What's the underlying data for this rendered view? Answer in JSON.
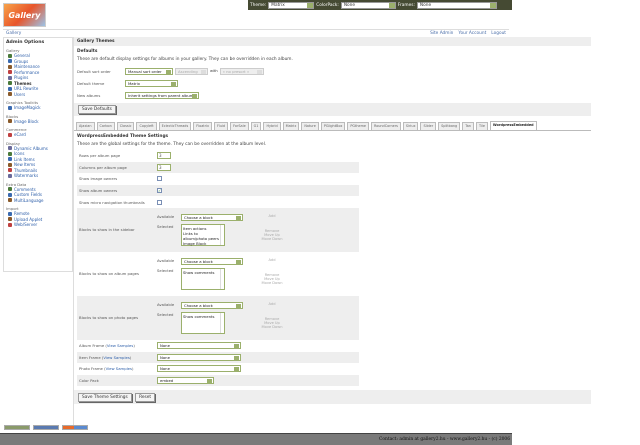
{
  "topbar": {
    "theme_label": "Theme:",
    "theme_value": "Matrix",
    "colorpack_label": "ColorPack:",
    "colorpack_value": "None",
    "frames_label": "Frames:",
    "frames_value": "None"
  },
  "logo_text": "Gallery",
  "nav": {
    "breadcrumb": "Gallery",
    "links": [
      "Site Admin",
      "Your Account",
      "Logout"
    ]
  },
  "sidebar": {
    "title": "Admin Options",
    "groups": [
      {
        "label": "Gallery",
        "items": [
          "General",
          "Groups",
          "Maintenance",
          "Performance",
          "Plugins",
          "Themes",
          "URL Rewrite",
          "Users"
        ]
      },
      {
        "label": "Graphics Toolkits",
        "items": [
          "ImageMagick"
        ]
      },
      {
        "label": "Blocks",
        "items": [
          "Image Block"
        ]
      },
      {
        "label": "Commerce",
        "items": [
          "eCard"
        ]
      },
      {
        "label": "Display",
        "items": [
          "Dynamic Albums",
          "Icons",
          "Link Items",
          "New Items",
          "Thumbnails",
          "Watermarks"
        ]
      },
      {
        "label": "Extra Data",
        "items": [
          "Comments",
          "Custom Fields",
          "MultiLanguage"
        ]
      },
      {
        "label": "Import",
        "items": [
          "Remote",
          "Upload Applet",
          "Web/Server"
        ]
      }
    ],
    "current": "Themes"
  },
  "main": {
    "title": "Gallery Themes",
    "defaults": {
      "heading": "Defaults",
      "description": "These are default display settings for albums in your gallery. They can be overridden in each album.",
      "sort_label": "Default sort order",
      "sort_value": "Manual sort order",
      "direction_value": "Ascending",
      "with_label": "with",
      "presort_value": "« no presort »",
      "theme_label": "Default theme",
      "theme_value": "Matrix",
      "new_albums_label": "New albums",
      "new_albums_value": "Inherit settings from parent album",
      "save_button": "Save Defaults"
    },
    "tabs": [
      "Ajaxian",
      "Carbon",
      "Classic",
      "Copyleft",
      "EclecticThreads",
      "Floatrix",
      "Fluid",
      "ForSale",
      "G1",
      "Hybrid",
      "Matrix",
      "Nature",
      "PGlightBox",
      "PGtheme",
      "RoundCorners",
      "Siriux",
      "Slider",
      "Splitbang",
      "Tan",
      "Tile",
      "WordpressEmbedded"
    ],
    "active_tab": "WordpressEmbedded",
    "theme_settings": {
      "heading": "WordpressEmbedded Theme Settings",
      "description": "These are the global settings for the theme. They can be overridden at the album level.",
      "rows_label": "Rows per album page",
      "rows_value": "3",
      "cols_label": "Columns per album page",
      "cols_value": "3",
      "image_owners_label": "Show image owners",
      "image_owners": false,
      "album_owners_label": "Show album owners",
      "album_owners": true,
      "micro_nav_label": "Show micro navigation thumbnails",
      "micro_nav": false,
      "available_label": "Available",
      "selected_label": "Selected",
      "choose_block": "Choose a block",
      "add": "Add",
      "remove": "Remove",
      "move_up": "Move Up",
      "move_down": "Move Down",
      "sidebar_blocks_label": "Blocks to show in the sidebar",
      "sidebar_blocks": [
        "Item actions",
        "Links to album/photo peers",
        "Image Block"
      ],
      "album_blocks_label": "Blocks to show on album pages",
      "album_blocks": [
        "Show comments"
      ],
      "photo_blocks_label": "Blocks to show on photo pages",
      "photo_blocks": [
        "Show comments"
      ],
      "album_frame_label": "Album Frame (",
      "item_frame_label": "Item Frame (",
      "photo_frame_label": "Photo Frame (",
      "view_samples": "View Samples",
      "close_paren": ")",
      "album_frame": "None",
      "item_frame": "None",
      "photo_frame": "None",
      "color_pack_label": "Color Pack",
      "color_pack": "embed",
      "save_button": "Save Theme Settings",
      "reset_button": "Reset"
    }
  },
  "footer": {
    "text": "Contact: admin at gallery2.hu - www.gallery2.hu - (c) 2006"
  },
  "colors": {
    "topbar": "#454a33",
    "accent": "#9bb06c",
    "link": "#2a5ca8",
    "footer": "#7a7a7a"
  }
}
